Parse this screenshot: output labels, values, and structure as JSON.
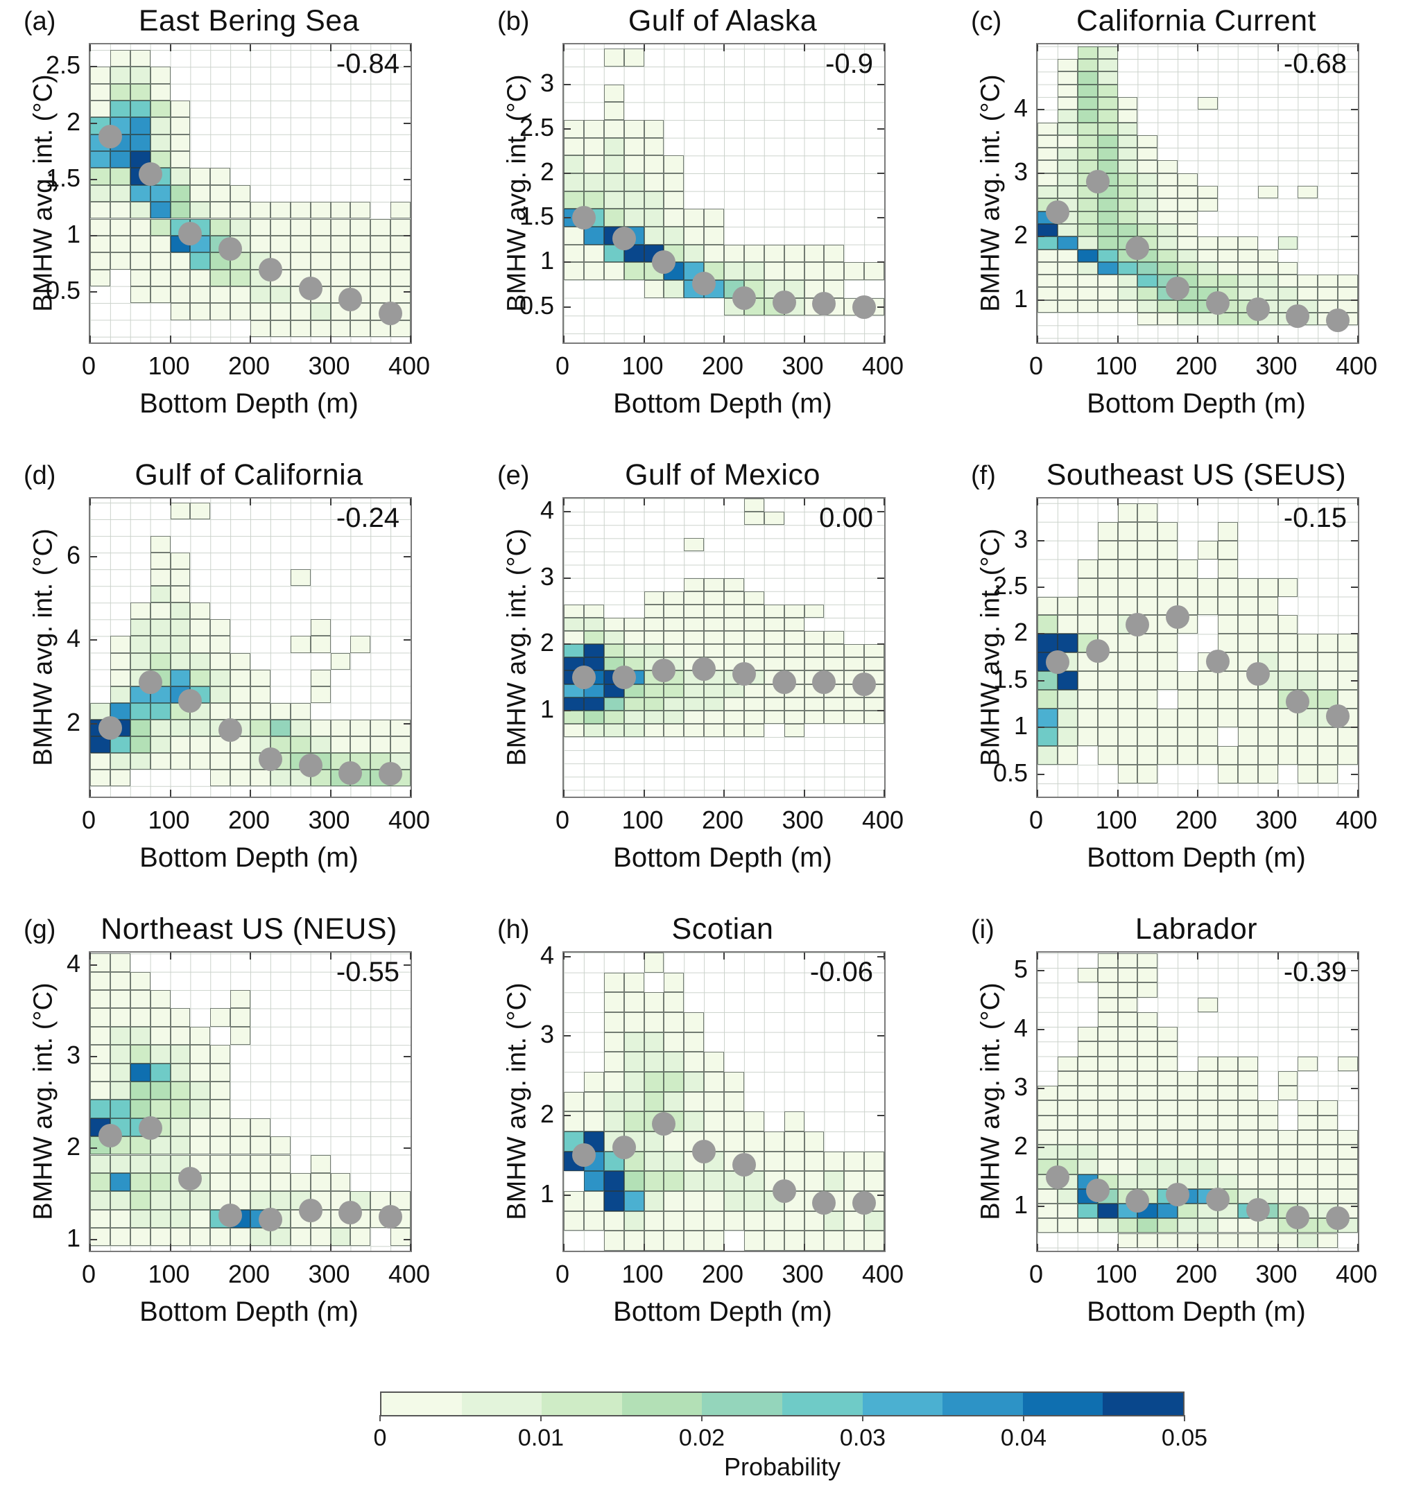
{
  "chart_data": {
    "type": "heatmap",
    "figure": "Binned 2D probability histograms of bottom marine heatwave average intensity vs bottom depth for nine regions, with gray binned-mean dots and per-panel correlation coefficient",
    "xlabel": "Bottom Depth (m)",
    "ylabel": "BMHW avg. int. (°C)",
    "x": {
      "min": 0,
      "max": 400,
      "ticks": [
        0,
        100,
        200,
        300,
        400
      ],
      "tick_labels": [
        "0",
        "100",
        "200",
        "300",
        "400"
      ],
      "bin_width_m": 25,
      "n_bins": 16
    },
    "colorbar": {
      "label": "Probability",
      "tick_labels": [
        "0",
        "0.01",
        "0.02",
        "0.03",
        "0.04",
        "0.05"
      ],
      "level_edges": [
        0,
        0.005,
        0.01,
        0.015,
        0.02,
        0.025,
        0.03,
        0.035,
        0.04,
        0.045,
        0.05
      ],
      "colors": [
        "#f3fae8",
        "#e3f4db",
        "#cfecc6",
        "#b3e0b6",
        "#94d5bb",
        "#6fcbc7",
        "#4bb0d1",
        "#2d93c6",
        "#0f6fb0",
        "#09478c"
      ]
    },
    "dot_color": "#9a9a9a",
    "grid_color": "#ccd3cc",
    "legend": "cells encode probability level 1-10 per colorbar; '.' = empty bin; dots = [depth m, intensity °C]",
    "subplots": [
      {
        "label": "(a)",
        "title": "East Bering Sea",
        "correlation": "-0.84",
        "y": {
          "min": 0.05,
          "max": 2.7,
          "tick_vals": [
            0.5,
            1,
            1.5,
            2,
            2.5
          ],
          "tick_labels": [
            "0.5",
            "1",
            "1.5",
            "2",
            "2.5"
          ]
        },
        "cells": {
          "top": 2.65,
          "h": 0.15,
          "rows": [
            ".11.............",
            "1221............",
            "1331............",
            "16631...........",
            "67821...........",
            "78821...........",
            "78a31...........",
            "33a6211.........",
            "22774111........",
            "11284211111111.1",
            "1113663211111111",
            "1111975211111111",
            "1111164321111111",
            "1.11113321111111",
            "..11111122111111",
            "....111111121111",
            "........11111111"
          ]
        },
        "dots": [
          [
            25,
            1.88
          ],
          [
            75,
            1.55
          ],
          [
            125,
            1.02
          ],
          [
            175,
            0.88
          ],
          [
            225,
            0.7
          ],
          [
            275,
            0.53
          ],
          [
            325,
            0.43
          ],
          [
            375,
            0.31
          ]
        ]
      },
      {
        "label": "(b)",
        "title": "Gulf of Alaska",
        "correlation": "-0.9",
        "y": {
          "min": 0.1,
          "max": 3.45,
          "tick_vals": [
            0.5,
            1,
            1.5,
            2,
            2.5,
            3
          ],
          "tick_labels": [
            "0.5",
            "1",
            "1.5",
            "2",
            "2.5",
            "3"
          ]
        },
        "cells": {
          "top": 3.4,
          "h": 0.2,
          "rows": [
            "..11............",
            "................",
            "..1.............",
            "..1.............",
            "11111...........",
            "11211...........",
            "212111..........",
            "222211..........",
            "332221..........",
            "86322111........",
            "18a82211........",
            "116aa321111111..",
            "1113397322111111",
            "....1277532211..",
            "........23321111"
          ]
        },
        "dots": [
          [
            25,
            1.5
          ],
          [
            75,
            1.27
          ],
          [
            125,
            1.0
          ],
          [
            175,
            0.76
          ],
          [
            225,
            0.6
          ],
          [
            275,
            0.55
          ],
          [
            325,
            0.54
          ],
          [
            375,
            0.5
          ]
        ]
      },
      {
        "label": "(c)",
        "title": "California Current",
        "correlation": "-0.68",
        "y": {
          "min": 0.33,
          "max": 5.03,
          "tick_vals": [
            1,
            2,
            3,
            4
          ],
          "tick_labels": [
            "1",
            "2",
            "3",
            "4"
          ]
        },
        "cells": {
          "top": 5.0,
          "h": 0.2,
          "rows": [
            "..32............",
            ".132............",
            ".142............",
            ".143............",
            ".1431...1.......",
            ".2431...........",
            "12332...........",
            "113421..........",
            "123421..........",
            "1234211.........",
            "12343211........",
            "223432111..1.1..",
            "323432111.......",
            "82343211........",
            "a2344321........",
            "68244321111.2...",
            "119644321111....",
            "1128654321111...",
            "1111265433221111",
            "1111235443222111",
            "1111123443322211",
            ".....11223322211"
          ]
        },
        "dots": [
          [
            25,
            2.38
          ],
          [
            75,
            2.87
          ],
          [
            125,
            1.82
          ],
          [
            175,
            1.18
          ],
          [
            225,
            0.95
          ],
          [
            275,
            0.85
          ],
          [
            325,
            0.75
          ],
          [
            375,
            0.68
          ]
        ]
      },
      {
        "label": "(d)",
        "title": "Gulf of California",
        "correlation": "-0.24",
        "y": {
          "min": 0.25,
          "max": 7.4,
          "tick_vals": [
            2,
            4,
            6
          ],
          "tick_labels": [
            "2",
            "4",
            "6"
          ]
        },
        "cells": {
          "top": 7.3,
          "h": 0.4,
          "rows": [
            "....11..........",
            "................",
            "...1............",
            "...11...........",
            "...11.....1.....",
            "...21...........",
            "..1121..........",
            "..22211....1....",
            ".122211...11.1..",
            ".1232211....1...",
            ".12473211..1....",
            ".27786211..1....",
            "28663211111.....",
            "aa42222235211111",
            "a642111123321111",
            "1221111123443332",
            "11....1112234443"
          ]
        },
        "dots": [
          [
            25,
            1.9
          ],
          [
            75,
            3.0
          ],
          [
            125,
            2.55
          ],
          [
            175,
            1.85
          ],
          [
            225,
            1.15
          ],
          [
            275,
            1.0
          ],
          [
            325,
            0.82
          ],
          [
            375,
            0.8
          ]
        ]
      },
      {
        "label": "(e)",
        "title": "Gulf of Mexico",
        "correlation": "0.00",
        "y": {
          "min": -0.3,
          "max": 4.2,
          "tick_vals": [
            1,
            2,
            3,
            4
          ],
          "tick_labels": [
            "1",
            "2",
            "3",
            "4"
          ]
        },
        "cells": {
          "top": 4.2,
          "h": 0.2,
          "rows": [
            ".........1......",
            ".........11.....",
            "................",
            "......1.........",
            "................",
            "................",
            "......111.......",
            "....111111......",
            "11..111111111...",
            "221111111111....",
            "13211111111111..",
            "6a32211111111111",
            "aa43221111111111",
            "a9a8332222111111",
            "78a4332221111111",
            "aa53322211111111",
            "3432221111111111",
            "1222111111.1...."
          ]
        },
        "dots": [
          [
            25,
            1.5
          ],
          [
            75,
            1.5
          ],
          [
            125,
            1.6
          ],
          [
            175,
            1.63
          ],
          [
            225,
            1.55
          ],
          [
            275,
            1.43
          ],
          [
            325,
            1.43
          ],
          [
            375,
            1.4
          ]
        ]
      },
      {
        "label": "(f)",
        "title": "Southeast US (SEUS)",
        "correlation": "-0.15",
        "y": {
          "min": 0.26,
          "max": 3.45,
          "tick_vals": [
            0.5,
            1,
            1.5,
            2,
            2.5,
            3
          ],
          "tick_labels": [
            "0.5",
            "1",
            "1.5",
            "2",
            "2.5",
            "3"
          ]
        },
        "cells": {
          "top": 3.4,
          "h": 0.2,
          "rows": [
            "....11..........",
            "...1111..1......",
            "...1111.11......",
            "..111111.1......",
            "..11111111111...",
            "111111111111....",
            "31112111.1111...",
            "aa31111..1111111",
            "a211111.11121111",
            "5a11111111122211",
            "321111.111113331",
            "7211111111111221",
            "621111111.111111",
            "21.1111111111111",
            "....11...111.11."
          ]
        },
        "dots": [
          [
            25,
            1.7
          ],
          [
            75,
            1.82
          ],
          [
            125,
            2.1
          ],
          [
            175,
            2.18
          ],
          [
            225,
            1.71
          ],
          [
            275,
            1.57
          ],
          [
            325,
            1.28
          ],
          [
            375,
            1.12
          ]
        ]
      },
      {
        "label": "(g)",
        "title": "Northeast US (NEUS)",
        "correlation": "-0.55",
        "y": {
          "min": 0.88,
          "max": 4.14,
          "tick_vals": [
            1,
            2,
            3,
            4
          ],
          "tick_labels": [
            "1",
            "2",
            "3",
            "4"
          ]
        },
        "cells": {
          "top": 4.13,
          "h": 0.2,
          "rows": [
            "11..............",
            "111.............",
            "1111...1........",
            "11111.11........",
            "122111.1........",
            "1232211.........",
            "1296211.........",
            "1244321.........",
            "6643321.........",
            "a66321111.......",
            "4332211111......",
            "2222211111.1....",
            "3833221111111...",
            "2232221122211211",
            "1122216982111111",
            "11111111221121.1"
          ]
        },
        "dots": [
          [
            25,
            2.14
          ],
          [
            75,
            2.22
          ],
          [
            125,
            1.67
          ],
          [
            175,
            1.27
          ],
          [
            225,
            1.22
          ],
          [
            275,
            1.32
          ],
          [
            325,
            1.3
          ],
          [
            375,
            1.25
          ]
        ]
      },
      {
        "label": "(h)",
        "title": "Scotian",
        "correlation": "-0.06",
        "y": {
          "min": 0.3,
          "max": 4.05,
          "tick_vals": [
            1,
            2,
            3,
            4
          ],
          "tick_labels": [
            "1",
            "2",
            "3",
            "4"
          ]
        },
        "cells": {
          "top": 4.05,
          "h": 0.25,
          "rows": [
            "....1...........",
            "..11.1..........",
            "..1111..........",
            "..11111.........",
            "..12211.........",
            "..122211........",
            ".11233211.......",
            "112232111.......",
            "1123332111.1....",
            "6a22211111111...",
            "a863221211111111",
            ".8a4332222111211",
            "11a7211122211111",
            "1112111111111212",
            "..111111.1111111"
          ]
        },
        "dots": [
          [
            25,
            1.5
          ],
          [
            75,
            1.6
          ],
          [
            125,
            1.9
          ],
          [
            175,
            1.55
          ],
          [
            225,
            1.38
          ],
          [
            275,
            1.05
          ],
          [
            325,
            0.9
          ],
          [
            375,
            0.9
          ]
        ]
      },
      {
        "label": "(i)",
        "title": "Labrador",
        "correlation": "-0.39",
        "y": {
          "min": 0.25,
          "max": 5.31,
          "tick_vals": [
            1,
            2,
            3,
            4,
            5
          ],
          "tick_labels": [
            "1",
            "2",
            "3",
            "4",
            "5"
          ]
        },
        "cells": {
          "top": 5.3,
          "h": 0.25,
          "rows": [
            "...111..........",
            "..1111..........",
            "...111..........",
            "...11...1.......",
            "...111..........",
            "..11111.........",
            "..11111.........",
            ".111111.111..1.1",
            ".1111111111.1...",
            "11111111111.1...",
            "111111111111.11.",
            "111111111111.11.",
            "1111111111111111",
            "2221111111111111",
            "3321122221111111",
            "2283222222111111",
            "1295336873221111",
            "116a798322653221",
            "1112343221123332",
            "....11111111121."
          ]
        },
        "dots": [
          [
            25,
            1.5
          ],
          [
            75,
            1.27
          ],
          [
            125,
            1.1
          ],
          [
            175,
            1.2
          ],
          [
            225,
            1.12
          ],
          [
            275,
            0.95
          ],
          [
            325,
            0.82
          ],
          [
            375,
            0.8
          ]
        ]
      }
    ]
  }
}
